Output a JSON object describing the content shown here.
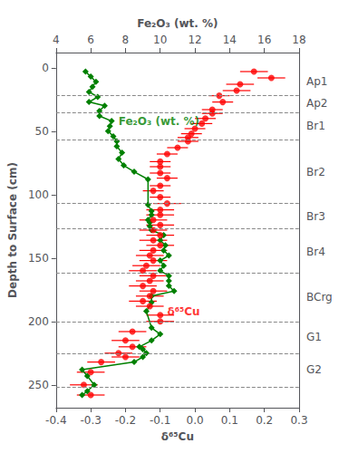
{
  "chart_data": {
    "type": "line",
    "xlabel": "δ⁶⁵Cu",
    "x2label": "Fe₂O₃ (wt. %)",
    "ylabel": "Depth to Surface (cm)",
    "xlim": [
      -0.4,
      0.3
    ],
    "xticks": [
      -0.4,
      -0.3,
      -0.2,
      -0.1,
      {
        "value": 0,
        "label": "0.0"
      },
      0.1,
      0.2,
      0.3
    ],
    "x2lim": [
      4,
      18
    ],
    "x2ticks": [
      4,
      6,
      8,
      10,
      12,
      14,
      16,
      18
    ],
    "ylim": [
      268,
      -12
    ],
    "yticks": [
      0,
      50,
      100,
      150,
      200,
      250
    ],
    "y2lim": [
      268,
      -12
    ],
    "y2ticks": [
      {
        "value": 11,
        "label": "Ap1"
      },
      {
        "value": 28,
        "label": "Ap2"
      },
      {
        "value": 46,
        "label": "Br1"
      },
      {
        "value": 82,
        "label": "Br2"
      },
      {
        "value": 117,
        "label": "Br3"
      },
      {
        "value": 145,
        "label": "Br4"
      },
      {
        "value": 181,
        "label": "BCrg"
      },
      {
        "value": 212,
        "label": "G1"
      },
      {
        "value": 238,
        "label": "G2"
      }
    ],
    "grid": false,
    "series": [
      {
        "type": "line",
        "axis": "x2",
        "color": "#008000",
        "marker": "diamond",
        "x": [
          5.7,
          6.0,
          6.3,
          6.1,
          5.9,
          6.4,
          5.9,
          6.8,
          6.5,
          6.5,
          7.2,
          7.1,
          7.0,
          7.3,
          7.5,
          7.5,
          7.8,
          7.6,
          7.9,
          8.5,
          9.3,
          9.3,
          9.5,
          9.5,
          9.3,
          9.4,
          9.4,
          9.5,
          10.2,
          10.0,
          10.3,
          10.2,
          10.5,
          10.0,
          10.2,
          10.0,
          10.5,
          10.5,
          10.5,
          10.8,
          9.5,
          9.5,
          9.2,
          9.5,
          10.0,
          9.5,
          8.8,
          9.0,
          9.2,
          9.0,
          8.5,
          5.5,
          5.8,
          6.2,
          5.8,
          5.5
        ],
        "y": [
          3,
          7,
          11,
          15,
          19,
          23,
          27,
          30,
          34,
          38,
          42,
          46,
          50,
          54,
          58,
          62,
          67,
          72,
          77,
          82,
          88,
          108,
          113,
          116,
          120,
          122,
          125,
          128,
          132,
          136,
          140,
          144,
          148,
          152,
          156,
          160,
          164,
          168,
          172,
          176,
          180,
          185,
          192,
          205,
          210,
          215,
          220,
          222,
          225,
          228,
          232,
          238,
          243,
          250,
          255,
          258
        ]
      },
      {
        "type": "scatter",
        "color": "#FF0000",
        "marker": "circle",
        "x": [
          0.17,
          0.22,
          0.13,
          0.12,
          0.07,
          0.08,
          0.05,
          0.05,
          0.03,
          0.02,
          0.0,
          -0.01,
          -0.02,
          -0.02,
          -0.05,
          -0.08,
          -0.1,
          -0.1,
          -0.1,
          -0.08,
          -0.1,
          -0.12,
          -0.1,
          -0.08,
          -0.1,
          -0.1,
          -0.12,
          -0.1,
          -0.12,
          -0.1,
          -0.12,
          -0.1,
          -0.12,
          -0.13,
          -0.12,
          -0.14,
          -0.15,
          -0.12,
          -0.13,
          -0.15,
          -0.12,
          -0.13,
          -0.15,
          -0.13,
          -0.1,
          -0.1,
          -0.18,
          -0.2,
          -0.18,
          -0.22,
          -0.2,
          -0.27,
          -0.3,
          -0.32,
          -0.3
        ],
        "y": [
          3,
          8,
          13,
          18,
          22,
          27,
          33,
          36,
          40,
          44,
          48,
          52,
          55,
          58,
          63,
          68,
          74,
          78,
          83,
          87,
          93,
          97,
          102,
          107,
          112,
          116,
          120,
          124,
          128,
          132,
          136,
          140,
          144,
          148,
          152,
          156,
          160,
          164,
          168,
          172,
          176,
          180,
          184,
          188,
          195,
          200,
          208,
          215,
          220,
          225,
          228,
          232,
          240,
          250,
          258
        ],
        "xerr": [
          0.04,
          0.04,
          0.04,
          0.04,
          0.03,
          0.03,
          0.03,
          0.03,
          0.03,
          0.03,
          0.03,
          0.03,
          0.03,
          0.03,
          0.03,
          0.03,
          0.03,
          0.03,
          0.03,
          0.03,
          0.03,
          0.03,
          0.03,
          0.04,
          0.04,
          0.04,
          0.04,
          0.04,
          0.04,
          0.04,
          0.04,
          0.04,
          0.04,
          0.04,
          0.04,
          0.04,
          0.04,
          0.04,
          0.04,
          0.04,
          0.04,
          0.04,
          0.04,
          0.04,
          0.04,
          0.04,
          0.04,
          0.04,
          0.04,
          0.04,
          0.04,
          0.04,
          0.04,
          0.04,
          0.04
        ]
      }
    ],
    "horizon_lines": [
      22,
      35,
      57,
      107,
      127,
      162,
      200,
      225,
      252
    ],
    "annotations": [
      {
        "text": "Fe₂O₃ (wt. %)",
        "x": -0.22,
        "y": 42,
        "color": "#008000"
      },
      {
        "text": "δ⁶⁵Cu",
        "x": -0.08,
        "y": 192,
        "color": "#FF0000"
      }
    ]
  }
}
